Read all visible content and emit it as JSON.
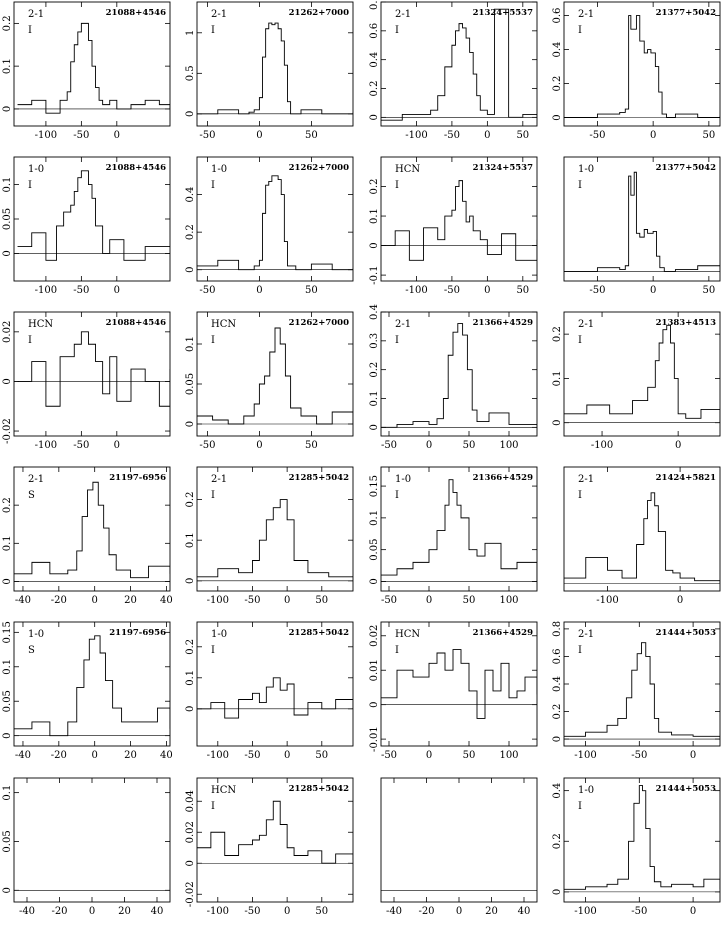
{
  "chart_data": [
    {
      "type": "line",
      "source": "21088+4546",
      "line": "2-1",
      "mode": "I",
      "xlim": [
        -145,
        75
      ],
      "ylim": [
        -0.04,
        0.25
      ],
      "xticks": [
        -100,
        -50,
        0
      ],
      "yticks": [
        0,
        0.1,
        0.2
      ],
      "x": [
        -140,
        -120,
        -100,
        -80,
        -70,
        -65,
        -60,
        -55,
        -50,
        -45,
        -40,
        -35,
        -30,
        -25,
        -20,
        -10,
        0,
        20,
        40,
        60,
        75
      ],
      "y": [
        0.01,
        0.02,
        -0.01,
        0.02,
        0.04,
        0.11,
        0.15,
        0.18,
        0.2,
        0.2,
        0.16,
        0.1,
        0.05,
        0.02,
        0.01,
        0.02,
        0,
        0.01,
        0.02,
        0.01,
        0
      ]
    },
    {
      "type": "line",
      "source": "21262+7000",
      "line": "2-1",
      "mode": "I",
      "xlim": [
        -60,
        90
      ],
      "ylim": [
        -0.15,
        1.38
      ],
      "xticks": [
        -50,
        0,
        50
      ],
      "yticks": [
        0,
        0.5,
        1
      ],
      "x": [
        -60,
        -40,
        -20,
        -10,
        -5,
        0,
        3,
        6,
        9,
        12,
        15,
        18,
        21,
        24,
        27,
        30,
        40,
        60,
        90
      ],
      "y": [
        0,
        0.05,
        0,
        0.02,
        0.05,
        0.2,
        0.7,
        1.05,
        1.12,
        1.1,
        1.12,
        1.05,
        0.9,
        0.6,
        0.15,
        0,
        0.05,
        0,
        0.02
      ]
    },
    {
      "type": "line",
      "source": "21324+5537",
      "line": "2-1",
      "mode": "I",
      "xlim": [
        -150,
        70
      ],
      "ylim": [
        -0.06,
        0.8
      ],
      "xticks": [
        -100,
        -50,
        0,
        50
      ],
      "yticks": [
        0,
        0.2,
        0.4,
        0.6,
        0.8
      ],
      "x": [
        -150,
        -120,
        -90,
        -80,
        -70,
        -60,
        -50,
        -45,
        -40,
        -35,
        -30,
        -25,
        -20,
        -15,
        -10,
        0,
        10,
        30,
        50,
        70
      ],
      "y": [
        -0.02,
        0.02,
        0.02,
        0.05,
        0.15,
        0.35,
        0.5,
        0.6,
        0.65,
        0.62,
        0.55,
        0.45,
        0.3,
        0.15,
        0.05,
        0.02,
        0.75,
        0,
        0.02,
        0
      ]
    },
    {
      "type": "line",
      "source": "21377+5042",
      "line": "2-1",
      "mode": "I",
      "xlim": [
        -80,
        60
      ],
      "ylim": [
        -0.05,
        0.68
      ],
      "xticks": [
        -50,
        0,
        50
      ],
      "yticks": [
        0,
        0.2,
        0.4,
        0.6
      ],
      "x": [
        -80,
        -50,
        -30,
        -25,
        -22,
        -20,
        -15,
        -12,
        -8,
        -5,
        -2,
        2,
        5,
        8,
        12,
        20,
        40,
        60
      ],
      "y": [
        0,
        0.02,
        0.03,
        0.05,
        0.6,
        0.52,
        0.6,
        0.45,
        0.38,
        0.4,
        0.38,
        0.3,
        0.15,
        0.02,
        0,
        0.02,
        0,
        0.01
      ]
    },
    {
      "type": "line",
      "source": "21088+4546",
      "line": "1-0",
      "mode": "I",
      "xlim": [
        -145,
        75
      ],
      "ylim": [
        -0.04,
        0.14
      ],
      "xticks": [
        -100,
        -50,
        0
      ],
      "yticks": [
        0,
        0.05,
        0.1
      ],
      "x": [
        -140,
        -120,
        -100,
        -85,
        -75,
        -65,
        -60,
        -55,
        -50,
        -45,
        -40,
        -35,
        -30,
        -20,
        -10,
        10,
        40,
        75
      ],
      "y": [
        0.01,
        0.03,
        -0.01,
        0.04,
        0.06,
        0.07,
        0.09,
        0.11,
        0.12,
        0.12,
        0.1,
        0.08,
        0.04,
        0,
        0.02,
        -0.01,
        0.01,
        0.01
      ]
    },
    {
      "type": "line",
      "source": "21262+7000",
      "line": "1-0",
      "mode": "I",
      "xlim": [
        -60,
        90
      ],
      "ylim": [
        -0.06,
        0.6
      ],
      "xticks": [
        -50,
        0,
        50
      ],
      "yticks": [
        0,
        0.2,
        0.4
      ],
      "x": [
        -60,
        -40,
        -20,
        -5,
        0,
        3,
        6,
        9,
        12,
        15,
        18,
        21,
        24,
        27,
        35,
        50,
        70,
        90
      ],
      "y": [
        0.02,
        0.05,
        0,
        0.02,
        0.05,
        0.3,
        0.45,
        0.47,
        0.5,
        0.5,
        0.48,
        0.4,
        0.15,
        0.02,
        0,
        0.03,
        0,
        0.01
      ]
    },
    {
      "type": "line",
      "source": "21324+5537",
      "line": "HCN",
      "mode": "I",
      "xlim": [
        -150,
        70
      ],
      "ylim": [
        -0.12,
        0.3
      ],
      "xticks": [
        -100,
        -50,
        0,
        50
      ],
      "yticks": [
        -0.1,
        0,
        0.1,
        0.2
      ],
      "x": [
        -150,
        -130,
        -110,
        -90,
        -70,
        -60,
        -50,
        -45,
        -40,
        -35,
        -30,
        -25,
        -20,
        -10,
        0,
        20,
        40,
        70
      ],
      "y": [
        0,
        0.05,
        -0.05,
        0.06,
        0.02,
        0.1,
        0.12,
        0.2,
        0.22,
        0.15,
        0.08,
        0.1,
        0.05,
        0.02,
        -0.03,
        0.04,
        -0.05,
        0.02
      ]
    },
    {
      "type": "line",
      "source": "21377+5042",
      "line": "1-0",
      "mode": "I",
      "xlim": [
        -80,
        60
      ],
      "ylim": [
        -0.05,
        0.6
      ],
      "xticks": [
        -50,
        0,
        50
      ],
      "yticks": [],
      "x": [
        -80,
        -50,
        -30,
        -25,
        -22,
        -20,
        -17,
        -15,
        -12,
        -8,
        -5,
        0,
        3,
        6,
        10,
        20,
        40,
        60
      ],
      "y": [
        0,
        0.02,
        0.01,
        0.03,
        0.5,
        0.4,
        0.52,
        0.2,
        0.18,
        0.22,
        0.2,
        0.21,
        0.08,
        0.02,
        0,
        0.01,
        0.03,
        0.01
      ]
    },
    {
      "type": "line",
      "source": "21088+4546",
      "line": "HCN",
      "mode": "I",
      "xlim": [
        -145,
        75
      ],
      "ylim": [
        -0.022,
        0.028
      ],
      "xticks": [
        -100,
        -50,
        0
      ],
      "yticks": [
        -0.02,
        0,
        0.02
      ],
      "x": [
        -140,
        -120,
        -100,
        -80,
        -60,
        -50,
        -40,
        -30,
        -20,
        -10,
        0,
        20,
        40,
        60,
        75
      ],
      "y": [
        0,
        0.008,
        -0.01,
        0.01,
        0.015,
        0.02,
        0.015,
        0.008,
        -0.005,
        0.01,
        -0.008,
        0.005,
        0,
        -0.01,
        0.005
      ]
    },
    {
      "type": "line",
      "source": "21262+7000",
      "line": "HCN",
      "mode": "I",
      "xlim": [
        -60,
        90
      ],
      "ylim": [
        -0.015,
        0.14
      ],
      "xticks": [
        -50,
        0,
        50
      ],
      "yticks": [
        0,
        0.05,
        0.1
      ],
      "x": [
        -60,
        -45,
        -30,
        -15,
        -5,
        0,
        5,
        10,
        15,
        20,
        25,
        30,
        40,
        55,
        70,
        90
      ],
      "y": [
        0.01,
        0.005,
        0,
        0.01,
        0.025,
        0.05,
        0.06,
        0.09,
        0.12,
        0.1,
        0.06,
        0.02,
        0.01,
        0,
        0.015,
        0
      ]
    },
    {
      "type": "line",
      "source": "21366+4529",
      "line": "2-1",
      "mode": "I",
      "xlim": [
        -60,
        135
      ],
      "ylim": [
        -0.03,
        0.4
      ],
      "xticks": [
        -50,
        0,
        50,
        100
      ],
      "yticks": [
        0,
        0.1,
        0.2,
        0.3,
        0.4
      ],
      "x": [
        -60,
        -40,
        -20,
        0,
        10,
        18,
        24,
        30,
        36,
        42,
        48,
        54,
        60,
        75,
        100,
        135
      ],
      "y": [
        0,
        0.01,
        0.02,
        0.01,
        0.03,
        0.1,
        0.25,
        0.33,
        0.36,
        0.32,
        0.2,
        0.06,
        0.02,
        0.05,
        0.01,
        0
      ]
    },
    {
      "type": "line",
      "source": "21383+4513",
      "line": "2-1",
      "mode": "I",
      "xlim": [
        -150,
        55
      ],
      "ylim": [
        -0.03,
        0.25
      ],
      "xticks": [
        -100,
        0
      ],
      "yticks": [
        0,
        0.1,
        0.2
      ],
      "x": [
        -150,
        -120,
        -90,
        -60,
        -40,
        -30,
        -25,
        -20,
        -15,
        -10,
        -5,
        0,
        10,
        30,
        55
      ],
      "y": [
        0.02,
        0.04,
        0.02,
        0.05,
        0.08,
        0.14,
        0.18,
        0.21,
        0.22,
        0.18,
        0.1,
        0.02,
        0.01,
        0.03,
        0
      ]
    },
    {
      "type": "line",
      "source": "21197-6956",
      "line": "2-1",
      "mode": "S",
      "xlim": [
        -45,
        42
      ],
      "ylim": [
        -0.025,
        0.3
      ],
      "xticks": [
        -40,
        -20,
        0,
        20,
        40
      ],
      "yticks": [
        0,
        0.1,
        0.2
      ],
      "x": [
        -45,
        -35,
        -25,
        -15,
        -10,
        -7,
        -4,
        -1,
        2,
        5,
        8,
        12,
        20,
        30,
        42
      ],
      "y": [
        0.02,
        0.05,
        0.02,
        0.03,
        0.08,
        0.17,
        0.24,
        0.26,
        0.2,
        0.14,
        0.07,
        0.03,
        0.01,
        0.04,
        0.02
      ]
    },
    {
      "type": "line",
      "source": "21285+5042",
      "line": "2-1",
      "mode": "I",
      "xlim": [
        -130,
        95
      ],
      "ylim": [
        -0.025,
        0.28
      ],
      "xticks": [
        -100,
        -50,
        0,
        50
      ],
      "yticks": [
        0,
        0.1,
        0.2
      ],
      "x": [
        -130,
        -100,
        -70,
        -50,
        -40,
        -30,
        -20,
        -10,
        0,
        10,
        30,
        60,
        95
      ],
      "y": [
        0.01,
        0.03,
        0.02,
        0.05,
        0.1,
        0.15,
        0.18,
        0.2,
        0.15,
        0.05,
        0.02,
        0.01,
        0.01
      ]
    },
    {
      "type": "line",
      "source": "21366+4529",
      "line": "1-0",
      "mode": "I",
      "xlim": [
        -60,
        135
      ],
      "ylim": [
        -0.015,
        0.18
      ],
      "xticks": [
        -50,
        0,
        50,
        100
      ],
      "yticks": [
        0,
        0.05,
        0.1,
        0.15
      ],
      "x": [
        -60,
        -40,
        -20,
        0,
        10,
        20,
        25,
        30,
        35,
        40,
        50,
        60,
        70,
        90,
        110,
        135
      ],
      "y": [
        0.01,
        0.02,
        0.03,
        0.05,
        0.08,
        0.12,
        0.16,
        0.14,
        0.12,
        0.1,
        0.05,
        0.04,
        0.06,
        0.02,
        0.03,
        0
      ]
    },
    {
      "type": "line",
      "source": "21424+5821",
      "line": "2-1",
      "mode": "I",
      "xlim": [
        -160,
        55
      ],
      "ylim": [
        -0.03,
        0.45
      ],
      "xticks": [
        -100,
        0
      ],
      "yticks": [],
      "x": [
        -160,
        -130,
        -100,
        -80,
        -60,
        -50,
        -45,
        -40,
        -35,
        -30,
        -20,
        -10,
        0,
        20,
        55
      ],
      "y": [
        0.02,
        0.1,
        0.05,
        0.02,
        0.15,
        0.25,
        0.32,
        0.35,
        0.3,
        0.2,
        0.05,
        0.04,
        0.02,
        0.01,
        0
      ]
    },
    {
      "type": "line",
      "source": "21197-6956",
      "line": "1-0",
      "mode": "S",
      "xlim": [
        -45,
        42
      ],
      "ylim": [
        -0.015,
        0.165
      ],
      "xticks": [
        -40,
        -20,
        0,
        20,
        40
      ],
      "yticks": [
        0,
        0.05,
        0.1,
        0.15
      ],
      "x": [
        -45,
        -35,
        -25,
        -15,
        -10,
        -6,
        -3,
        0,
        3,
        6,
        10,
        15,
        25,
        35,
        42
      ],
      "y": [
        0.01,
        0.02,
        0,
        0.02,
        0.07,
        0.11,
        0.14,
        0.145,
        0.12,
        0.08,
        0.04,
        0.02,
        0.02,
        0.04,
        0.01
      ]
    },
    {
      "type": "line",
      "source": "21285+5042",
      "line": "1-0",
      "mode": "I",
      "xlim": [
        -130,
        95
      ],
      "ylim": [
        -0.12,
        0.28
      ],
      "xticks": [
        -100,
        -50,
        0,
        50
      ],
      "yticks": [
        0,
        0.1,
        0.2
      ],
      "x": [
        -130,
        -110,
        -90,
        -70,
        -50,
        -40,
        -30,
        -20,
        -10,
        0,
        10,
        30,
        50,
        70,
        95
      ],
      "y": [
        0,
        0.02,
        -0.03,
        0.03,
        0.05,
        0.02,
        0.07,
        0.1,
        0.06,
        0.08,
        -0.02,
        0.02,
        0,
        0.03,
        0
      ]
    },
    {
      "type": "line",
      "source": "21366+4529",
      "line": "HCN",
      "mode": "I",
      "xlim": [
        -60,
        135
      ],
      "ylim": [
        -0.012,
        0.024
      ],
      "xticks": [
        -50,
        0,
        50,
        100
      ],
      "yticks": [
        -0.01,
        0,
        0.01,
        0.02
      ],
      "x": [
        -60,
        -40,
        -20,
        0,
        10,
        20,
        30,
        40,
        50,
        60,
        70,
        80,
        90,
        100,
        110,
        120,
        135
      ],
      "y": [
        0.002,
        0.01,
        0.008,
        0.012,
        0.015,
        0.01,
        0.016,
        0.012,
        0.004,
        -0.004,
        0.01,
        0.004,
        0.012,
        0.002,
        0.004,
        0.008,
        0.003
      ]
    },
    {
      "type": "line",
      "source": "21444+5053",
      "line": "2-1",
      "mode": "I",
      "xlim": [
        -120,
        25
      ],
      "ylim": [
        -0.05,
        0.85
      ],
      "xticks": [
        -100,
        -50,
        0
      ],
      "yticks": [
        0,
        0.2,
        0.4,
        0.6,
        0.8
      ],
      "x": [
        -120,
        -100,
        -80,
        -70,
        -62,
        -57,
        -52,
        -48,
        -44,
        -40,
        -36,
        -32,
        -20,
        0,
        25
      ],
      "y": [
        0.02,
        0.05,
        0.1,
        0.15,
        0.3,
        0.5,
        0.62,
        0.7,
        0.6,
        0.4,
        0.15,
        0.05,
        0.03,
        0.02,
        0.01
      ]
    },
    {
      "type": "line",
      "source": "",
      "line": "",
      "mode": "",
      "xlim": [
        -48,
        48
      ],
      "ylim": [
        -0.012,
        0.115
      ],
      "xticks": [
        -40,
        -20,
        0,
        20,
        40
      ],
      "yticks": [
        0,
        0.05,
        0.1
      ],
      "x": [
        -48,
        48
      ],
      "y": [
        0,
        0
      ]
    },
    {
      "type": "line",
      "source": "21285+5042",
      "line": "HCN",
      "mode": "I",
      "xlim": [
        -130,
        95
      ],
      "ylim": [
        -0.025,
        0.055
      ],
      "xticks": [
        -100,
        -50,
        0,
        50
      ],
      "yticks": [
        -0.02,
        0,
        0.02,
        0.04
      ],
      "x": [
        -130,
        -110,
        -90,
        -70,
        -50,
        -40,
        -30,
        -20,
        -10,
        0,
        10,
        30,
        50,
        70,
        95
      ],
      "y": [
        0.01,
        0.02,
        0.005,
        0.012,
        0.015,
        0.018,
        0.028,
        0.04,
        0.025,
        0.01,
        0.005,
        0.008,
        0,
        0.006,
        0.002
      ]
    },
    {
      "type": "line",
      "source": "",
      "line": "",
      "mode": "",
      "xlim": [
        -48,
        48
      ],
      "ylim": [
        -0.012,
        0.115
      ],
      "xticks": [
        -40,
        -20,
        0,
        20,
        40
      ],
      "yticks": [],
      "x": [
        -48,
        48
      ],
      "y": [
        0,
        0
      ]
    },
    {
      "type": "line",
      "source": "21444+5053",
      "line": "1-0",
      "mode": "I",
      "xlim": [
        -120,
        25
      ],
      "ylim": [
        -0.04,
        0.45
      ],
      "xticks": [
        -100,
        -50,
        0
      ],
      "yticks": [
        0,
        0.2,
        0.4
      ],
      "x": [
        -120,
        -100,
        -80,
        -70,
        -60,
        -55,
        -50,
        -47,
        -44,
        -40,
        -36,
        -30,
        -20,
        0,
        10,
        25
      ],
      "y": [
        0.01,
        0.02,
        0.03,
        0.05,
        0.2,
        0.35,
        0.42,
        0.4,
        0.25,
        0.1,
        0.04,
        0.02,
        0.03,
        0.02,
        0.05,
        0.01
      ]
    }
  ]
}
